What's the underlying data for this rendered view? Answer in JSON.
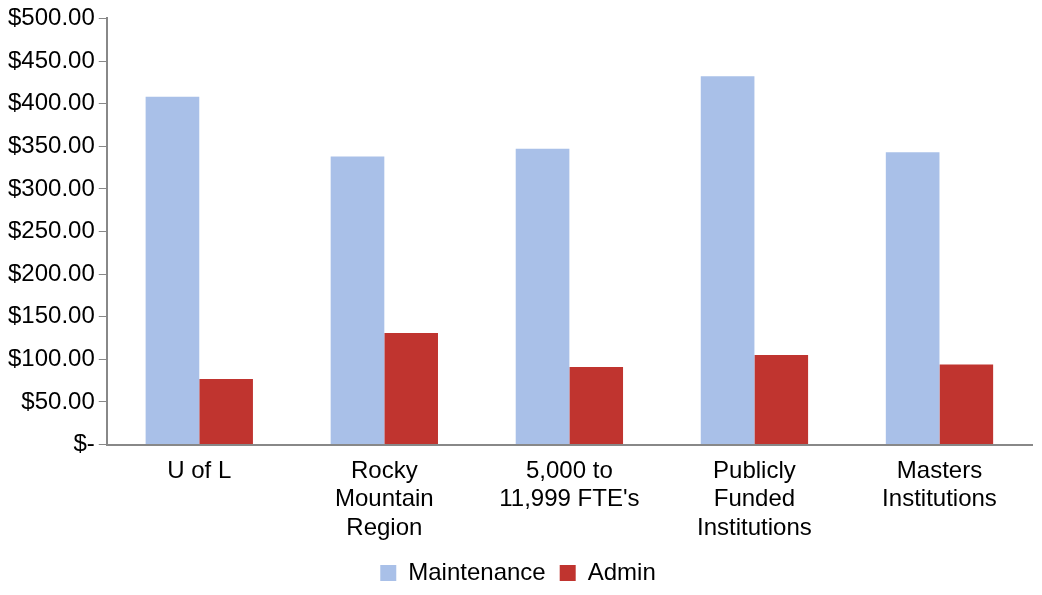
{
  "chart_data": {
    "type": "bar",
    "categories": [
      "U of L",
      "Rocky Mountain Region",
      "5,000 to 11,999 FTE's",
      "Publicly Funded Institutions",
      "Masters Institutions"
    ],
    "series": [
      {
        "name": "Maintenance",
        "color": "#a9c0e8",
        "values": [
          408,
          338,
          347,
          432,
          343
        ]
      },
      {
        "name": "Admin",
        "color": "#c0342f",
        "values": [
          77,
          131,
          91,
          105,
          94
        ]
      }
    ],
    "ylim": [
      0,
      500
    ],
    "yticks": [
      {
        "value": 0,
        "label": "$-"
      },
      {
        "value": 50,
        "label": "$50.00"
      },
      {
        "value": 100,
        "label": "$100.00"
      },
      {
        "value": 150,
        "label": "$150.00"
      },
      {
        "value": 200,
        "label": "$200.00"
      },
      {
        "value": 250,
        "label": "$250.00"
      },
      {
        "value": 300,
        "label": "$300.00"
      },
      {
        "value": 350,
        "label": "$350.00"
      },
      {
        "value": 400,
        "label": "$400.00"
      },
      {
        "value": 450,
        "label": "$450.00"
      },
      {
        "value": 500,
        "label": "$500.00"
      }
    ],
    "grid": false,
    "legend": "bottom"
  }
}
